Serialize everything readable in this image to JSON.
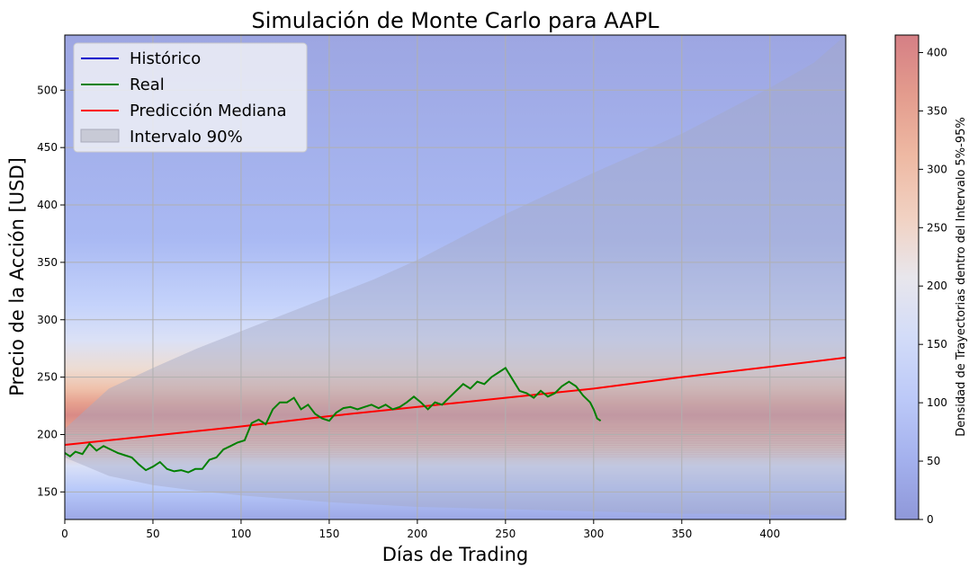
{
  "chart_data": {
    "type": "line",
    "title": "Simulación de Monte Carlo para AAPL",
    "xlabel": "Días de Trading",
    "ylabel": "Precio de la Acción [USD]",
    "xlim": [
      0,
      443
    ],
    "ylim": [
      126,
      548
    ],
    "x_ticks": [
      0,
      50,
      100,
      150,
      200,
      250,
      300,
      350,
      400
    ],
    "y_ticks": [
      150,
      200,
      250,
      300,
      350,
      400,
      450,
      500
    ],
    "grid": true,
    "legend": {
      "placement": "top-left",
      "entries": [
        {
          "label": "Histórico",
          "color": "#0000cc",
          "kind": "line"
        },
        {
          "label": "Real",
          "color": "#008000",
          "kind": "line"
        },
        {
          "label": "Predicción Mediana",
          "color": "#ff0000",
          "kind": "line"
        },
        {
          "label": "Intervalo 90%",
          "color": "#c8cad6",
          "kind": "patch"
        }
      ]
    },
    "colorbar": {
      "label": "Densidad de Trayectorias dentro del Intervalo 5%-95%",
      "range": [
        0,
        415
      ],
      "ticks": [
        0,
        50,
        100,
        150,
        200,
        250,
        300,
        350,
        400
      ],
      "colormap": "coolwarm"
    },
    "series": [
      {
        "name": "Real",
        "color": "#008000",
        "x": [
          0,
          3,
          6,
          10,
          14,
          18,
          22,
          26,
          30,
          34,
          38,
          42,
          46,
          50,
          54,
          58,
          62,
          66,
          70,
          74,
          78,
          82,
          86,
          90,
          94,
          98,
          102,
          106,
          110,
          114,
          118,
          122,
          126,
          130,
          134,
          138,
          142,
          146,
          150,
          154,
          158,
          162,
          166,
          170,
          174,
          178,
          182,
          186,
          190,
          194,
          198,
          202,
          206,
          210,
          214,
          218,
          222,
          226,
          230,
          234,
          238,
          242,
          246,
          250,
          254,
          258,
          262,
          266,
          270,
          274,
          278,
          282,
          286,
          290,
          294,
          298,
          300,
          302,
          304
        ],
        "y": [
          184,
          181,
          185,
          183,
          192,
          186,
          190,
          187,
          184,
          182,
          180,
          174,
          169,
          172,
          176,
          170,
          168,
          169,
          167,
          170,
          170,
          178,
          180,
          187,
          190,
          193,
          195,
          210,
          213,
          209,
          222,
          228,
          228,
          232,
          222,
          226,
          218,
          214,
          212,
          219,
          223,
          224,
          222,
          224,
          226,
          223,
          226,
          222,
          224,
          228,
          233,
          228,
          222,
          228,
          226,
          232,
          238,
          244,
          240,
          246,
          244,
          250,
          254,
          258,
          248,
          238,
          236,
          232,
          238,
          233,
          236,
          242,
          246,
          242,
          234,
          228,
          222,
          214,
          212
        ],
        "label_in_legend": true
      },
      {
        "name": "Predicción Mediana",
        "color": "#ff0000",
        "x": [
          0,
          50,
          100,
          150,
          200,
          250,
          300,
          350,
          400,
          443
        ],
        "y": [
          191,
          199,
          207,
          216,
          224,
          232,
          240,
          250,
          259,
          267
        ]
      },
      {
        "name": "Intervalo 90%",
        "kind": "band",
        "x": [
          0,
          25,
          50,
          75,
          100,
          125,
          150,
          175,
          200,
          225,
          250,
          275,
          300,
          325,
          350,
          375,
          400,
          425,
          443
        ],
        "lower": [
          180,
          164,
          156,
          151,
          147,
          144,
          141,
          139,
          137,
          136,
          135,
          134,
          133,
          132,
          131,
          131,
          130,
          130,
          129
        ],
        "upper": [
          205,
          240,
          258,
          275,
          290,
          305,
          320,
          335,
          352,
          372,
          392,
          410,
          428,
          445,
          462,
          482,
          502,
          524,
          548
        ]
      }
    ]
  }
}
